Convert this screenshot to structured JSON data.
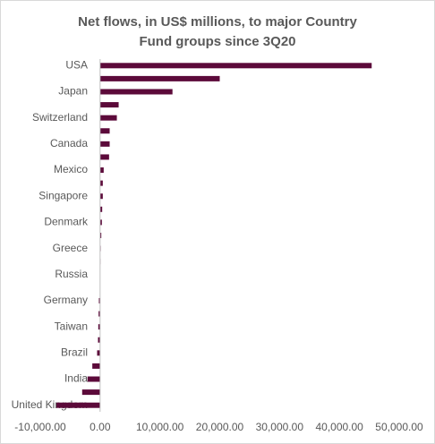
{
  "chart_data": {
    "type": "barh",
    "title": "Net flows, in US$ millions, to major Country Fund groups since 3Q20",
    "categories": [
      "USA",
      null,
      "Japan",
      null,
      "Switzerland",
      null,
      "Canada",
      null,
      "Mexico",
      null,
      "Singapore",
      null,
      "Denmark",
      null,
      "Greece",
      null,
      "Russia",
      null,
      "Germany",
      null,
      "Taiwan",
      null,
      "Brazil",
      null,
      "India",
      null,
      "United Kingdom"
    ],
    "values": [
      45400,
      20000,
      12100,
      3100,
      2800,
      1600,
      1600,
      1500,
      600,
      450,
      450,
      350,
      300,
      200,
      100,
      50,
      0,
      -50,
      -200,
      -250,
      -300,
      -350,
      -500,
      -1300,
      -2100,
      -3000,
      -7300
    ],
    "color": "#5c0a3a",
    "xlim": [
      -10000,
      50000
    ],
    "xticks": [
      {
        "value": -10000,
        "label": "-10,000.00"
      },
      {
        "value": 0,
        "label": "0.00"
      },
      {
        "value": 10000,
        "label": "10,000.00"
      },
      {
        "value": 20000,
        "label": "20,000.00"
      },
      {
        "value": 30000,
        "label": "30,000.00"
      },
      {
        "value": 40000,
        "label": "40,000.00"
      },
      {
        "value": 50000,
        "label": "50,000.00"
      }
    ],
    "grid": false
  }
}
